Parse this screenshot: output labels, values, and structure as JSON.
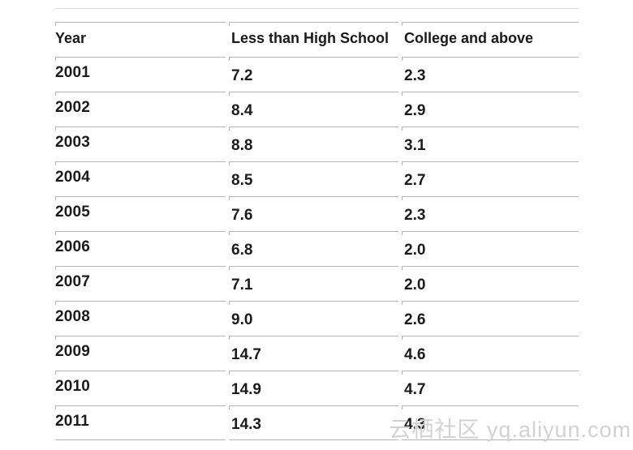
{
  "table": {
    "columns": [
      "Year",
      "Less than High School",
      "College and above"
    ],
    "rows": [
      [
        "2001",
        "7.2",
        "2.3"
      ],
      [
        "2002",
        "8.4",
        "2.9"
      ],
      [
        "2003",
        "8.8",
        "3.1"
      ],
      [
        "2004",
        "8.5",
        "2.7"
      ],
      [
        "2005",
        "7.6",
        "2.3"
      ],
      [
        "2006",
        "6.8",
        "2.0"
      ],
      [
        "2007",
        "7.1",
        "2.0"
      ],
      [
        "2008",
        "9.0",
        "2.6"
      ],
      [
        "2009",
        "14.7",
        "4.6"
      ],
      [
        "2010",
        "14.9",
        "4.7"
      ],
      [
        "2011",
        "14.3",
        "4.3"
      ]
    ]
  },
  "watermark": {
    "text": "云栖社区 yq.aliyun.com",
    "color": "#d2d2d2"
  },
  "colors": {
    "text": "#1b1b1b",
    "rule": "#b4b4b4",
    "faint_top_rule": "#dcdcdc",
    "background": "#ffffff"
  },
  "chart_data": {
    "type": "table",
    "title": "",
    "categories": [
      "2001",
      "2002",
      "2003",
      "2004",
      "2005",
      "2006",
      "2007",
      "2008",
      "2009",
      "2010",
      "2011"
    ],
    "series": [
      {
        "name": "Less than High School",
        "values": [
          7.2,
          8.4,
          8.8,
          8.5,
          7.6,
          6.8,
          7.1,
          9.0,
          14.7,
          14.9,
          14.3
        ]
      },
      {
        "name": "College and above",
        "values": [
          2.3,
          2.9,
          3.1,
          2.7,
          2.3,
          2.0,
          2.0,
          2.6,
          4.6,
          4.7,
          4.3
        ]
      }
    ],
    "xlabel": "Year",
    "ylabel": ""
  }
}
